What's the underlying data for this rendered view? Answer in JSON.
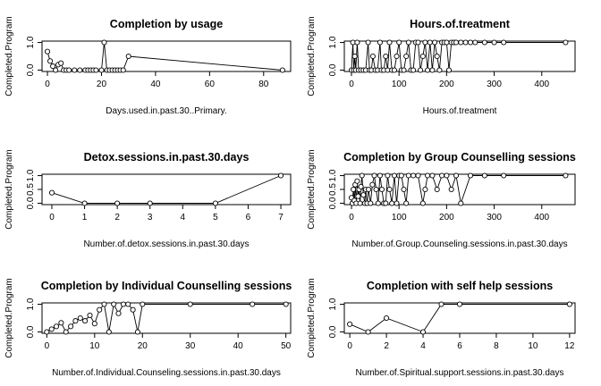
{
  "chart_data": [
    {
      "type": "line",
      "title": "Completion by usage",
      "xlabel": "Days.used.in.past.30..Primary.",
      "ylabel": "Completed.Program",
      "xlim": [
        -2,
        90
      ],
      "ylim": [
        -0.05,
        1.05
      ],
      "xticks": [
        0,
        20,
        40,
        60,
        80
      ],
      "yticks": [
        0.0,
        1.0
      ],
      "ytick_labels": [
        "0.0",
        "1.0"
      ],
      "series": [
        {
          "points": [
            [
              0,
              0.67
            ],
            [
              1,
              0.33
            ],
            [
              2,
              0.14
            ],
            [
              3,
              0.0
            ],
            [
              4,
              0.2
            ],
            [
              5,
              0.25
            ],
            [
              6,
              0.0
            ],
            [
              7,
              0.0
            ],
            [
              8,
              0.0
            ],
            [
              10,
              0.0
            ],
            [
              12,
              0.0
            ],
            [
              14,
              0.0
            ],
            [
              15,
              0.0
            ],
            [
              16,
              0.0
            ],
            [
              17,
              0.0
            ],
            [
              18,
              0.0
            ],
            [
              20,
              0.0
            ],
            [
              21,
              1.0
            ],
            [
              22,
              0.0
            ],
            [
              23,
              0.0
            ],
            [
              24,
              0.0
            ],
            [
              25,
              0.0
            ],
            [
              26,
              0.0
            ],
            [
              27,
              0.0
            ],
            [
              28,
              0.0
            ],
            [
              30,
              0.5
            ],
            [
              87,
              0.0
            ]
          ]
        }
      ]
    },
    {
      "type": "line",
      "title": "Hours.of.treatment",
      "xlabel": "Hours.of.treatment",
      "ylabel": "Completed.Program",
      "xlim": [
        -15,
        470
      ],
      "ylim": [
        -0.05,
        1.05
      ],
      "xticks": [
        0,
        100,
        200,
        300,
        400
      ],
      "yticks": [
        0.0,
        1.0
      ],
      "ytick_labels": [
        "0.0",
        "1.0"
      ],
      "series": [
        {
          "points": [
            [
              0,
              0.0
            ],
            [
              3,
              1.0
            ],
            [
              5,
              0.0
            ],
            [
              7,
              0.5
            ],
            [
              9,
              0.0
            ],
            [
              12,
              1.0
            ],
            [
              15,
              0.0
            ],
            [
              20,
              0.0
            ],
            [
              25,
              0.0
            ],
            [
              30,
              0.0
            ],
            [
              35,
              1.0
            ],
            [
              38,
              0.0
            ],
            [
              42,
              0.0
            ],
            [
              45,
              0.5
            ],
            [
              50,
              0.0
            ],
            [
              55,
              0.0
            ],
            [
              60,
              1.0
            ],
            [
              63,
              0.0
            ],
            [
              68,
              0.0
            ],
            [
              72,
              0.5
            ],
            [
              76,
              0.0
            ],
            [
              80,
              1.0
            ],
            [
              85,
              0.0
            ],
            [
              90,
              0.0
            ],
            [
              95,
              0.5
            ],
            [
              100,
              1.0
            ],
            [
              105,
              0.0
            ],
            [
              110,
              0.0
            ],
            [
              115,
              0.5
            ],
            [
              120,
              1.0
            ],
            [
              125,
              0.0
            ],
            [
              130,
              0.0
            ],
            [
              135,
              1.0
            ],
            [
              140,
              1.0
            ],
            [
              145,
              0.0
            ],
            [
              150,
              0.5
            ],
            [
              155,
              1.0
            ],
            [
              160,
              0.0
            ],
            [
              165,
              1.0
            ],
            [
              170,
              0.0
            ],
            [
              175,
              1.0
            ],
            [
              180,
              0.5
            ],
            [
              185,
              0.0
            ],
            [
              190,
              1.0
            ],
            [
              195,
              1.0
            ],
            [
              200,
              1.0
            ],
            [
              205,
              0.0
            ],
            [
              210,
              1.0
            ],
            [
              215,
              1.0
            ],
            [
              220,
              1.0
            ],
            [
              230,
              1.0
            ],
            [
              240,
              1.0
            ],
            [
              250,
              1.0
            ],
            [
              260,
              1.0
            ],
            [
              280,
              1.0
            ],
            [
              300,
              1.0
            ],
            [
              320,
              1.0
            ],
            [
              450,
              1.0
            ]
          ]
        }
      ]
    },
    {
      "type": "line",
      "title": "Detox.sessions.in.past.30.days",
      "xlabel": "Number.of.detox.sessions.in.past.30.days",
      "ylabel": "Completed.Program",
      "xlim": [
        -0.3,
        7.3
      ],
      "ylim": [
        -0.05,
        1.05
      ],
      "xticks": [
        0,
        1,
        2,
        3,
        4,
        5,
        6,
        7
      ],
      "yticks": [
        0.0,
        0.5,
        1.0
      ],
      "ytick_labels": [
        "0.0",
        "0.5",
        "1.0"
      ],
      "series": [
        {
          "points": [
            [
              0,
              0.38
            ],
            [
              1,
              0.0
            ],
            [
              2,
              0.0
            ],
            [
              3,
              0.0
            ],
            [
              5,
              0.0
            ],
            [
              7,
              1.0
            ]
          ]
        }
      ]
    },
    {
      "type": "line",
      "title": "Completion by Group Counselling sessions",
      "xlabel": "Number.of.Group.Counseling.sessions.in.past.30.days",
      "ylabel": "Completed.Program",
      "xlim": [
        -15,
        470
      ],
      "ylim": [
        -0.05,
        1.05
      ],
      "xticks": [
        0,
        100,
        200,
        300,
        400
      ],
      "yticks": [
        0.0,
        0.5,
        1.0
      ],
      "ytick_labels": [
        "0.0",
        "0.5",
        "1.0"
      ],
      "series": [
        {
          "points": [
            [
              0,
              0.2
            ],
            [
              2,
              0.0
            ],
            [
              4,
              0.5
            ],
            [
              6,
              0.1
            ],
            [
              8,
              0.67
            ],
            [
              10,
              0.0
            ],
            [
              12,
              0.8
            ],
            [
              14,
              0.25
            ],
            [
              16,
              0.5
            ],
            [
              18,
              0.0
            ],
            [
              20,
              0.6
            ],
            [
              22,
              1.0
            ],
            [
              25,
              0.3
            ],
            [
              28,
              0.0
            ],
            [
              30,
              0.5
            ],
            [
              33,
              0.0
            ],
            [
              36,
              0.5
            ],
            [
              40,
              0.0
            ],
            [
              44,
              0.67
            ],
            [
              48,
              1.0
            ],
            [
              52,
              0.5
            ],
            [
              56,
              0.0
            ],
            [
              60,
              1.0
            ],
            [
              64,
              0.5
            ],
            [
              68,
              0.0
            ],
            [
              72,
              0.0
            ],
            [
              76,
              1.0
            ],
            [
              80,
              0.5
            ],
            [
              85,
              0.0
            ],
            [
              90,
              1.0
            ],
            [
              95,
              0.0
            ],
            [
              100,
              1.0
            ],
            [
              105,
              1.0
            ],
            [
              110,
              0.5
            ],
            [
              115,
              0.0
            ],
            [
              120,
              1.0
            ],
            [
              130,
              1.0
            ],
            [
              140,
              1.0
            ],
            [
              150,
              0.0
            ],
            [
              155,
              0.5
            ],
            [
              160,
              1.0
            ],
            [
              170,
              1.0
            ],
            [
              180,
              0.5
            ],
            [
              190,
              1.0
            ],
            [
              200,
              1.0
            ],
            [
              210,
              0.5
            ],
            [
              220,
              1.0
            ],
            [
              230,
              0.0
            ],
            [
              250,
              1.0
            ],
            [
              280,
              1.0
            ],
            [
              320,
              1.0
            ],
            [
              450,
              1.0
            ]
          ]
        }
      ]
    },
    {
      "type": "line",
      "title": "Completion by Individual Counselling sessions",
      "xlabel": "Number.of.Individual.Counseling.sessions.in.past.30.days",
      "ylabel": "Completed.Program",
      "xlim": [
        -1,
        51
      ],
      "ylim": [
        -0.05,
        1.05
      ],
      "xticks": [
        0,
        10,
        20,
        30,
        40,
        50
      ],
      "yticks": [
        0.0,
        1.0
      ],
      "ytick_labels": [
        "0.0",
        "1.0"
      ],
      "series": [
        {
          "points": [
            [
              0,
              0.0
            ],
            [
              1,
              0.1
            ],
            [
              2,
              0.2
            ],
            [
              3,
              0.33
            ],
            [
              4,
              0.0
            ],
            [
              5,
              0.2
            ],
            [
              6,
              0.4
            ],
            [
              7,
              0.5
            ],
            [
              8,
              0.4
            ],
            [
              9,
              0.6
            ],
            [
              10,
              0.3
            ],
            [
              11,
              0.8
            ],
            [
              12,
              1.0
            ],
            [
              13,
              0.0
            ],
            [
              14,
              1.0
            ],
            [
              15,
              0.67
            ],
            [
              16,
              1.0
            ],
            [
              17,
              1.0
            ],
            [
              18,
              0.8
            ],
            [
              19,
              0.0
            ],
            [
              20,
              1.0
            ],
            [
              30,
              1.0
            ],
            [
              43,
              1.0
            ],
            [
              50,
              1.0
            ]
          ]
        }
      ]
    },
    {
      "type": "line",
      "title": "Completion with self help sessions",
      "xlabel": "Number.of.Spiritual.support.sessions.in.past.30.days",
      "ylabel": "Completed.Program",
      "xlim": [
        -0.3,
        12.3
      ],
      "ylim": [
        -0.05,
        1.05
      ],
      "xticks": [
        0,
        2,
        4,
        6,
        8,
        10,
        12
      ],
      "yticks": [
        0.0,
        1.0
      ],
      "ytick_labels": [
        "0.0",
        "1.0"
      ],
      "series": [
        {
          "points": [
            [
              0,
              0.28
            ],
            [
              1,
              0.0
            ],
            [
              2,
              0.5
            ],
            [
              4,
              0.0
            ],
            [
              5,
              1.0
            ],
            [
              6,
              1.0
            ],
            [
              12,
              1.0
            ]
          ]
        }
      ]
    }
  ]
}
